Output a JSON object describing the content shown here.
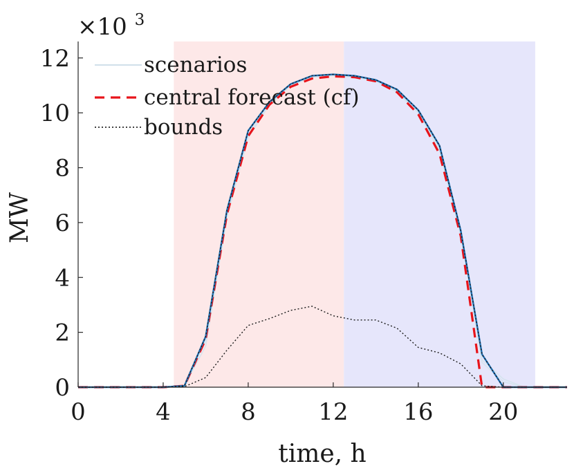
{
  "chart_data": {
    "type": "line",
    "xlabel": "time, h",
    "ylabel": "MW",
    "y_multiplier": {
      "base": "×10",
      "exponent": "3"
    },
    "xlim": [
      0,
      23
    ],
    "ylim": [
      0,
      12.6
    ],
    "x_ticks": [
      0,
      4,
      8,
      12,
      16,
      20
    ],
    "y_ticks": [
      0,
      2,
      4,
      6,
      8,
      10,
      12
    ],
    "shaded_regions": [
      {
        "name": "shaded-region-pink",
        "x_start": 4.5,
        "x_end": 12.5,
        "color": "#fde8e8"
      },
      {
        "name": "shaded-region-blue",
        "x_start": 12.5,
        "x_end": 21.5,
        "color": "#e6e6fb"
      }
    ],
    "legend": {
      "placement": "top-left",
      "entries": [
        {
          "label": "scenarios",
          "style": "solid",
          "color": "#c9dbe7"
        },
        {
          "label": "central forecast (cf)",
          "style": "dashed",
          "color": "#e8141b"
        },
        {
          "label": "bounds",
          "style": "dotted",
          "color": "#000000"
        }
      ]
    },
    "series": [
      {
        "name": "scenario-1",
        "role": "scenario",
        "color": "#d6e4ef",
        "x": [
          0,
          1,
          2,
          3,
          4,
          5,
          6,
          7,
          8,
          9,
          10,
          11,
          12,
          13,
          14,
          15,
          16,
          17,
          18,
          19,
          20,
          21,
          22,
          23
        ],
        "values": [
          0,
          0,
          0,
          0,
          0,
          0.05,
          1.5,
          6.2,
          9.1,
          10.3,
          11.0,
          11.3,
          11.35,
          11.3,
          11.15,
          10.75,
          10.0,
          8.6,
          5.5,
          1.0,
          0.3,
          0,
          0,
          0
        ]
      },
      {
        "name": "scenario-2",
        "role": "scenario",
        "color": "#d6e4ef",
        "x": [
          0,
          1,
          2,
          3,
          4,
          5,
          6,
          7,
          8,
          9,
          10,
          11,
          12,
          13,
          14,
          15,
          16,
          17,
          18,
          19,
          20,
          21,
          22,
          23
        ],
        "values": [
          0,
          0,
          0,
          0,
          0,
          0.05,
          1.7,
          6.3,
          9.2,
          10.35,
          11.0,
          11.3,
          11.35,
          11.3,
          11.18,
          10.8,
          10.05,
          8.7,
          5.6,
          0.9,
          0.2,
          0,
          0,
          0
        ]
      },
      {
        "name": "central-forecast",
        "role": "central",
        "color": "#e8141b",
        "x": [
          0,
          1,
          2,
          3,
          4,
          5,
          6,
          7,
          8,
          9,
          10,
          11,
          12,
          13,
          14,
          15,
          16,
          17,
          18,
          19,
          20,
          21,
          22,
          23
        ],
        "values": [
          0,
          0,
          0,
          0,
          0,
          0.05,
          1.75,
          6.3,
          9.15,
          10.3,
          10.95,
          11.25,
          11.33,
          11.3,
          11.15,
          10.75,
          9.95,
          8.5,
          5.5,
          0,
          0,
          0,
          0,
          0
        ]
      },
      {
        "name": "scenario-main",
        "role": "scenario",
        "color": "#1f6fb2",
        "x": [
          0,
          1,
          2,
          3,
          4,
          5,
          6,
          7,
          8,
          9,
          10,
          11,
          12,
          13,
          14,
          15,
          16,
          17,
          18,
          19,
          20,
          21,
          22,
          23
        ],
        "values": [
          0,
          0,
          0,
          0,
          0,
          0.05,
          1.85,
          6.45,
          9.35,
          10.4,
          11.05,
          11.35,
          11.4,
          11.35,
          11.2,
          10.85,
          10.1,
          8.8,
          5.7,
          1.2,
          0,
          0,
          0,
          0
        ]
      },
      {
        "name": "upper-bound",
        "role": "bound",
        "color": "#1a1a1a",
        "x": [
          0,
          1,
          2,
          3,
          4,
          5,
          6,
          7,
          8,
          9,
          10,
          11,
          12,
          13,
          14,
          15,
          16,
          17,
          18,
          19,
          20,
          21,
          22,
          23
        ],
        "values": [
          0,
          0,
          0,
          0,
          0,
          0.05,
          1.85,
          6.45,
          9.35,
          10.4,
          11.05,
          11.35,
          11.4,
          11.35,
          11.2,
          10.85,
          10.1,
          8.8,
          5.7,
          1.2,
          0,
          0,
          0,
          0
        ]
      },
      {
        "name": "lower-bound",
        "role": "bound",
        "color": "#1a1a1a",
        "x": [
          0,
          1,
          2,
          3,
          4,
          5,
          6,
          7,
          8,
          9,
          10,
          11,
          12,
          13,
          14,
          15,
          16,
          17,
          18,
          19,
          20,
          21,
          22,
          23
        ],
        "values": [
          0,
          0,
          0,
          0,
          0,
          0.02,
          0.35,
          1.35,
          2.25,
          2.5,
          2.8,
          2.95,
          2.6,
          2.45,
          2.45,
          2.15,
          1.45,
          1.25,
          0.85,
          0.05,
          0,
          0,
          0,
          0
        ]
      }
    ]
  }
}
